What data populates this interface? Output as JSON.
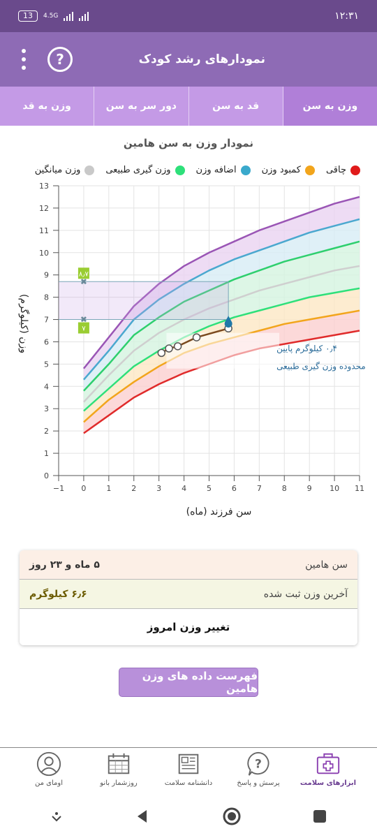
{
  "status_bar": {
    "time": "۱۲:۳۱",
    "battery": "13",
    "network": "4.5G"
  },
  "app_bar": {
    "title": "نمودارهای رشد کودک",
    "help_icon": "question-icon",
    "menu_icon": "more-vert-icon"
  },
  "tabs": [
    {
      "label": "وزن به سن",
      "active": true
    },
    {
      "label": "قد به سن",
      "active": false
    },
    {
      "label": "دور سر به سن",
      "active": false
    },
    {
      "label": "وزن به قد",
      "active": false
    }
  ],
  "chart_title": "نمودار وزن به سن هامین",
  "legend": [
    {
      "label": "چاقی",
      "color": "#e01b1b"
    },
    {
      "label": "کمبود وزن",
      "color": "#f2a51c"
    },
    {
      "label": "اضافه وزن",
      "color": "#3aa9cc"
    },
    {
      "label": "وزن گیری طبیعی",
      "color": "#2ee07a"
    },
    {
      "label": "وزن میانگین",
      "color": "#c9c9c9"
    }
  ],
  "chart_data": {
    "type": "line",
    "xlabel": "سن فرزند (ماه)",
    "ylabel": "وزن (کیلوگرم)",
    "xlim": [
      -1,
      11
    ],
    "ylim": [
      0,
      13
    ],
    "xticks": [
      -1,
      0,
      1,
      2,
      3,
      4,
      5,
      6,
      7,
      8,
      9,
      10,
      11
    ],
    "yticks": [
      0,
      1,
      2,
      3,
      4,
      5,
      6,
      7,
      8,
      9,
      10,
      11,
      12,
      13
    ],
    "x": [
      0,
      1,
      2,
      3,
      4,
      5,
      6,
      7,
      8,
      9,
      10,
      11
    ],
    "curves": [
      {
        "name": "sd3",
        "color": "#9a55b5",
        "values": [
          4.8,
          6.2,
          7.6,
          8.6,
          9.4,
          10.0,
          10.5,
          11.0,
          11.4,
          11.8,
          12.2,
          12.5
        ]
      },
      {
        "name": "sd2",
        "color": "#4aa8cf",
        "values": [
          4.3,
          5.6,
          7.0,
          7.9,
          8.6,
          9.2,
          9.7,
          10.1,
          10.5,
          10.9,
          11.2,
          11.5
        ]
      },
      {
        "name": "sd1",
        "color": "#2ecf6e",
        "values": [
          3.8,
          5.0,
          6.3,
          7.1,
          7.8,
          8.3,
          8.8,
          9.2,
          9.6,
          9.9,
          10.2,
          10.5
        ]
      },
      {
        "name": "sd0",
        "color": "#cfcfcf",
        "values": [
          3.3,
          4.5,
          5.6,
          6.4,
          7.0,
          7.5,
          7.9,
          8.3,
          8.6,
          8.9,
          9.2,
          9.4
        ]
      },
      {
        "name": "sdm1",
        "color": "#2ee07a",
        "values": [
          2.9,
          3.9,
          4.9,
          5.6,
          6.2,
          6.7,
          7.1,
          7.4,
          7.7,
          8.0,
          8.2,
          8.4
        ]
      },
      {
        "name": "sdm2",
        "color": "#f2a51c",
        "values": [
          2.4,
          3.4,
          4.2,
          4.9,
          5.5,
          5.9,
          6.2,
          6.5,
          6.8,
          7.0,
          7.2,
          7.4
        ]
      },
      {
        "name": "sdm3",
        "color": "#e02b2b",
        "values": [
          1.9,
          2.7,
          3.5,
          4.1,
          4.6,
          5.0,
          5.4,
          5.7,
          5.9,
          6.1,
          6.3,
          6.5
        ]
      }
    ],
    "child_points": {
      "x": [
        3.1,
        3.4,
        3.75,
        4.5,
        5.77
      ],
      "y": [
        5.5,
        5.7,
        5.8,
        6.2,
        6.6
      ]
    },
    "reference_lines": [
      {
        "y": 8.7,
        "label": "۸٫۷",
        "x_end": 5.77
      },
      {
        "y": 7.0,
        "label": "۷",
        "x_end": 5.77
      }
    ],
    "annotation": [
      "۰٫۴ کیلوگرم پایین",
      "محدوده وزن گیری طبیعی"
    ]
  },
  "info_card": {
    "age_label": "سن هامین",
    "age_value": "۵ ماه و ۲۳ روز",
    "weight_label": "آخرین وزن ثبت شده",
    "weight_value": "۶٫۶ کیلوگرم",
    "action_label": "تغییر وزن امروز"
  },
  "list_button_label": "فهرست داده های وزن هامین",
  "bottom_nav": [
    {
      "label": "ابزارهای سلامت",
      "icon": "health-kit-icon",
      "active": true
    },
    {
      "label": "پرسش و پاسخ",
      "icon": "question-bubble-icon",
      "active": false
    },
    {
      "label": "دانشنامه سلامت",
      "icon": "newspaper-icon",
      "active": false
    },
    {
      "label": "روزشمار بانو",
      "icon": "calendar-icon",
      "active": false
    },
    {
      "label": "اومای من",
      "icon": "profile-icon",
      "active": false
    }
  ]
}
